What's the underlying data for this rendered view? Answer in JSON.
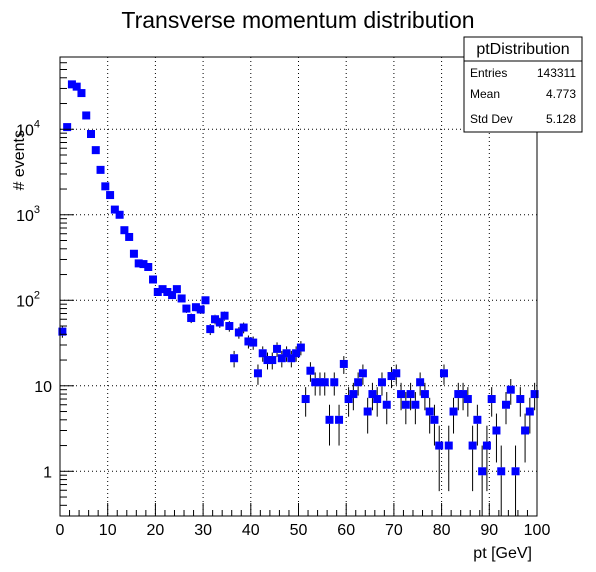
{
  "chart_data": {
    "type": "scatter",
    "title": "Transverse momentum distribution",
    "xlabel": "pt [GeV]",
    "ylabel": "# events",
    "xlim": [
      0,
      100
    ],
    "ylim": [
      0.3,
      70000
    ],
    "yscale": "log",
    "grid": true,
    "marker_color": "#0000ff",
    "x_ticks": [
      "0",
      "10",
      "20",
      "30",
      "40",
      "50",
      "60",
      "70",
      "80",
      "90",
      "100"
    ],
    "y_ticks": [
      {
        "value": 1,
        "base": "1",
        "exp": ""
      },
      {
        "value": 10,
        "base": "10",
        "exp": ""
      },
      {
        "value": 100,
        "base": "10",
        "exp": "2"
      },
      {
        "value": 1000,
        "base": "10",
        "exp": "3"
      },
      {
        "value": 10000,
        "base": "10",
        "exp": "4"
      }
    ],
    "series": [
      {
        "x": [
          0.5,
          1.5,
          2.5,
          3.5,
          4.5,
          5.5,
          6.5,
          7.5,
          8.5,
          9.5,
          10.5,
          11.5,
          12.5,
          13.5,
          14.5,
          15.5,
          16.5,
          17.5,
          18.5,
          19.5,
          20.5,
          21.5,
          22.5,
          23.5,
          24.5,
          25.5,
          26.5,
          27.5,
          28.5,
          29.5,
          30.5,
          31.5,
          32.5,
          33.5,
          34.5,
          35.5,
          36.5,
          37.5,
          38.5,
          39.5,
          40.5,
          41.5,
          42.5,
          43.5,
          44.5,
          45.5,
          46.5,
          47.5,
          48.5,
          49.5,
          50.5,
          51.5,
          52.5,
          53.5,
          54.5,
          55.5,
          56.5,
          57.5,
          58.5,
          59.5,
          60.5,
          61.5,
          62.5,
          63.5,
          64.5,
          65.5,
          66.5,
          67.5,
          68.5,
          69.5,
          70.5,
          71.5,
          72.5,
          73.5,
          74.5,
          75.5,
          76.5,
          77.5,
          78.5,
          79.5,
          80.5,
          81.5,
          82.5,
          83.5,
          84.5,
          85.5,
          86.5,
          87.5,
          88.5,
          89.5,
          90.5,
          91.5,
          92.5,
          93.5,
          94.5,
          95.5,
          96.5,
          97.5,
          98.5,
          99.5
        ],
        "y": [
          43,
          10600,
          33500,
          31500,
          26500,
          14500,
          8800,
          5700,
          3350,
          2150,
          1700,
          1150,
          1000,
          660,
          550,
          350,
          270,
          265,
          245,
          175,
          125,
          135,
          125,
          115,
          135,
          105,
          80,
          62,
          83,
          78,
          100,
          46,
          60,
          55,
          66,
          50,
          21,
          42,
          48,
          33,
          32,
          14,
          24,
          20,
          20,
          27,
          21,
          24,
          21,
          24,
          28,
          7,
          15,
          11,
          11,
          11,
          4,
          11,
          4,
          18,
          7,
          8,
          11,
          14,
          5,
          8,
          7,
          11,
          6,
          13,
          14,
          8,
          6,
          8,
          6,
          11,
          8,
          5,
          4,
          2,
          14,
          2,
          5,
          8,
          8,
          7,
          2,
          4,
          1,
          2,
          7,
          3,
          1,
          6,
          9,
          1,
          7,
          3,
          5,
          8
        ]
      }
    ]
  },
  "stats_box": {
    "name": "ptDistribution",
    "rows": [
      {
        "label": "Entries",
        "value": "143311"
      },
      {
        "label": "Mean",
        "value": "4.773"
      },
      {
        "label": "Std Dev",
        "value": "5.128"
      }
    ]
  }
}
